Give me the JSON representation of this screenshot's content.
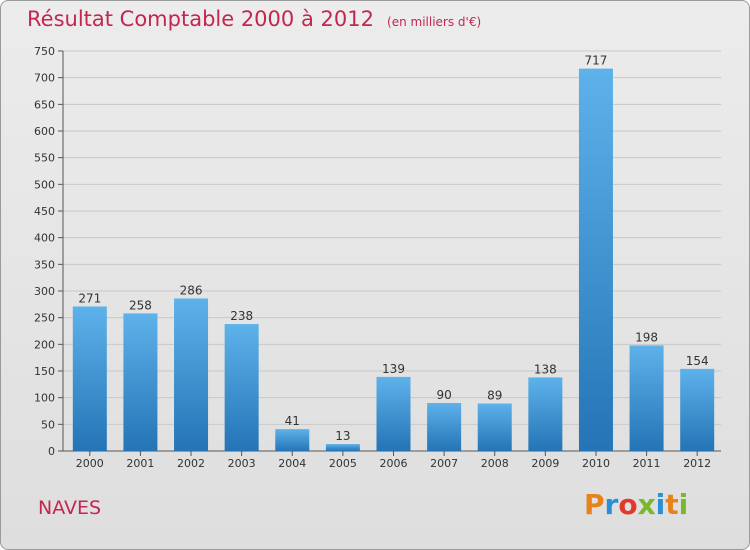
{
  "header": {
    "title": "Résultat Comptable 2000 à 2012",
    "subtitle": "(en milliers d'€)"
  },
  "footer": {
    "commune": "NAVES",
    "logo_text": "Proxiti"
  },
  "colors": {
    "title": "#c5264f",
    "bar_top": "#5eb2ea",
    "bar_bottom": "#2474b6",
    "logo": [
      "#e8821a",
      "#2a8fd6",
      "#e03a2a",
      "#79b829",
      "#2a8fd6",
      "#e8821a",
      "#79b829"
    ]
  },
  "chart_data": {
    "type": "bar",
    "title": "Résultat Comptable 2000 à 2012",
    "xlabel": "",
    "ylabel": "",
    "categories": [
      "2000",
      "2001",
      "2002",
      "2003",
      "2004",
      "2005",
      "2006",
      "2007",
      "2008",
      "2009",
      "2010",
      "2011",
      "2012"
    ],
    "values": [
      271,
      258,
      286,
      238,
      41,
      13,
      139,
      90,
      89,
      138,
      717,
      198,
      154
    ],
    "ylim": [
      0,
      750
    ],
    "yticks": [
      0,
      50,
      100,
      150,
      200,
      250,
      300,
      350,
      400,
      450,
      500,
      550,
      600,
      650,
      700,
      750
    ],
    "grid": true
  }
}
